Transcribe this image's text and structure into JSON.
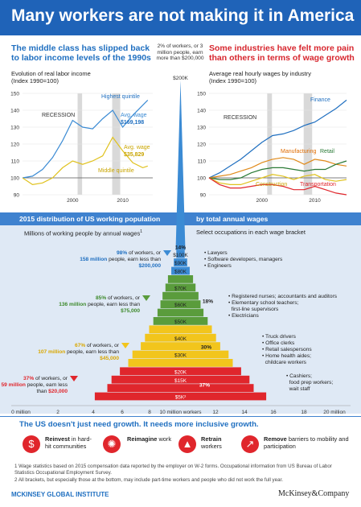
{
  "header": {
    "title": "Many workers are not making it in America",
    "left_subtitle": "The middle class has slipped back to labor income levels of the 1990s",
    "center_note": "2% of workers, or 3 million people, earn more than $200,000",
    "right_subtitle": "Some industries have felt more pain than others in terms of wage growth"
  },
  "left_chart": {
    "caption": "Evolution of real labor income",
    "index_note": "(Index 1990=100)",
    "recession_label": "RECESSION",
    "highest_label": "Highest quintile",
    "avg_high_label": "Avg. wage",
    "avg_high_value": "$169,198",
    "avg_mid_label": "Avg. wage",
    "avg_mid_value": "$35,829",
    "middle_label": "Middle quintile"
  },
  "right_chart": {
    "caption": "Average real hourly wages by industry",
    "index_note": "(Index 1990=100)",
    "recession_label": "RECESSION",
    "finance_label": "Finance",
    "manufacturing_label": "Manufacturing",
    "retail_label": "Retail",
    "construction_label": "Construction",
    "transportation_label": "Transportation"
  },
  "pyramid": {
    "band_left_title": "2015 distribution of US working population",
    "band_right_title": "by total annual wages",
    "left_subtitle": "Millions of working people by annual wages",
    "left_sup": "1",
    "right_subtitle": "Select occupations in each wage bracket",
    "top_label": "$200K",
    "x_axis_title": "10 million workers"
  },
  "callouts": [
    {
      "pct": "98%",
      "of": " of workers, or",
      "num": "158 million",
      "rest": " people, earn less than ",
      "amt": "$200,000"
    },
    {
      "pct": "85%",
      "of": " of workers, or",
      "num": "136 million",
      "rest": " people, earn less than ",
      "amt": "$75,000"
    },
    {
      "pct": "67%",
      "of": " of workers, or",
      "num": "107 million",
      "rest": " people, earn less than ",
      "amt": "$45,000"
    },
    {
      "pct": "37%",
      "of": " of workers, or",
      "num": "59 million",
      "rest": " people, earn less than ",
      "amt": "$20,000"
    }
  ],
  "occupations": [
    [
      "Lawyers",
      "Software developers, managers",
      "Engineers"
    ],
    [
      "Registered nurses; accountants and auditors",
      "Elementary school teachers;",
      "first-line supervisors",
      "Electricians"
    ],
    [
      "Truck drivers",
      "Office clerks",
      "Retail salespersons",
      "Home health aides;",
      "childcare workers"
    ],
    [
      "Cashiers;",
      "food prep workers;",
      "wait staff"
    ]
  ],
  "inclusive": {
    "title": "The US doesn't just need growth. It needs more inclusive growth.",
    "items": [
      {
        "bold": "Reinvest",
        "rest": " in hard-hit communities",
        "icon": "dollar-icon"
      },
      {
        "bold": "Reimagine",
        "rest": " work",
        "icon": "lightbulb-icon"
      },
      {
        "bold": "Retrain",
        "rest": " workers",
        "icon": "graduation-cap-icon"
      },
      {
        "bold": "Remove",
        "rest": " barriers to mobility and participation",
        "icon": "arrows-icon"
      }
    ]
  },
  "footnotes": {
    "f1": "1 Wage statistics based on 2015 compensation data reported by the employer on W-2 forms. Occupational information from US Bureau of Labor Statistics Occupational Employment Survey.",
    "f2": "2 All brackets, but especially those at the bottom, may include part-time workers and people who did not work the full year."
  },
  "brand": {
    "institute": "MCKINSEY GLOBAL INSTITUTE",
    "company": "McKinsey&Company"
  },
  "colors": {
    "title_bg": "#1f63b8",
    "blue": "#3b8bd4",
    "green": "#5a9c3c",
    "yellow": "#f2c51c",
    "red": "#e0262c",
    "band_bg": "#dfe9f5"
  },
  "chart_data": [
    {
      "type": "line",
      "title": "Evolution of real labor income",
      "ylabel": "(Index 1990=100)",
      "x": [
        1990,
        1992,
        1994,
        1996,
        1998,
        2000,
        2002,
        2004,
        2006,
        2008,
        2010,
        2012,
        2014,
        2015
      ],
      "xticks": [
        "2000",
        "2010"
      ],
      "yticks": [
        90,
        100,
        110,
        120,
        130,
        140,
        150
      ],
      "ylim": [
        90,
        150
      ],
      "xlim": [
        1990,
        2016
      ],
      "recessions": [
        [
          2001,
          2001.9
        ],
        [
          2007.9,
          2009.5
        ]
      ],
      "series": [
        {
          "name": "Highest quintile",
          "values": [
            100,
            101,
            105,
            112,
            122,
            134,
            130,
            129,
            135,
            140,
            130,
            137,
            143,
            146
          ]
        },
        {
          "name": "Middle quintile",
          "values": [
            100,
            96,
            97,
            100,
            106,
            110,
            108,
            110,
            113,
            124,
            116,
            109,
            106,
            107
          ]
        }
      ]
    },
    {
      "type": "line",
      "title": "Average real hourly wages by industry",
      "ylabel": "(Index 1990=100)",
      "x": [
        1990,
        1992,
        1994,
        1996,
        1998,
        2000,
        2002,
        2004,
        2006,
        2008,
        2010,
        2012,
        2014,
        2016
      ],
      "xticks": [
        "2000",
        "2010"
      ],
      "yticks": [
        90,
        100,
        110,
        120,
        130,
        140,
        150
      ],
      "ylim": [
        90,
        150
      ],
      "xlim": [
        1990,
        2016
      ],
      "recessions": [
        [
          2001,
          2001.9
        ],
        [
          2007.9,
          2009.5
        ]
      ],
      "series": [
        {
          "name": "Finance",
          "values": [
            100,
            103,
            107,
            111,
            116,
            121,
            125,
            126,
            128,
            131,
            133,
            137,
            141,
            146
          ]
        },
        {
          "name": "Manufacturing",
          "values": [
            100,
            101,
            102,
            104,
            106,
            109,
            111,
            112,
            111,
            108,
            111,
            110,
            108,
            107
          ]
        },
        {
          "name": "Retail",
          "values": [
            100,
            99,
            99,
            100,
            103,
            105,
            106,
            106,
            105,
            104,
            105,
            105,
            108,
            110
          ]
        },
        {
          "name": "Construction",
          "values": [
            100,
            97,
            96,
            96,
            98,
            100,
            102,
            101,
            99,
            101,
            102,
            99,
            98,
            99
          ]
        },
        {
          "name": "Transportation",
          "values": [
            100,
            96,
            94,
            94,
            95,
            96,
            96,
            95,
            93,
            93,
            95,
            93,
            91,
            90
          ]
        }
      ]
    },
    {
      "type": "bar",
      "title": "2015 distribution of US working population by total annual wages",
      "xlabel": "10 million workers",
      "xticks": [
        "0 million",
        "2",
        "4",
        "6",
        "8",
        "12",
        "14",
        "16",
        "18",
        "20 million"
      ],
      "categories": [
        "$5K",
        "$10K",
        "$15K",
        "$20K",
        "$25K",
        "$30K",
        "$35K",
        "$40K",
        "$45K",
        "$50K",
        "$55K",
        "$60K",
        "$65K",
        "$70K",
        "$75K",
        "$80K",
        "$90K",
        "$100K",
        "$200K"
      ],
      "category_labels": [
        "$5K²",
        "",
        "$15K",
        "$20K",
        "",
        "$30K",
        "",
        "$40K",
        "",
        "$50K",
        "",
        "$60K",
        "",
        "$70K",
        "",
        "$80K",
        "$90K",
        "$100K",
        "$200K"
      ],
      "values": [
        20.5,
        17.5,
        16.5,
        14.5,
        12.5,
        11.5,
        9.5,
        8.5,
        7.5,
        6.5,
        5.5,
        4.8,
        4.3,
        3.6,
        3.0,
        2.2,
        1.6,
        1.0,
        0.3
      ],
      "segments": [
        {
          "label": "37%",
          "range": [
            "$5K",
            "$20K"
          ],
          "color": "red"
        },
        {
          "label": "30%",
          "range": [
            "$25K",
            "$45K"
          ],
          "color": "yellow"
        },
        {
          "label": "18%",
          "range": [
            "$50K",
            "$75K"
          ],
          "color": "green"
        },
        {
          "label": "14%",
          "range": [
            "$80K",
            "$200K"
          ],
          "color": "blue"
        }
      ]
    }
  ]
}
